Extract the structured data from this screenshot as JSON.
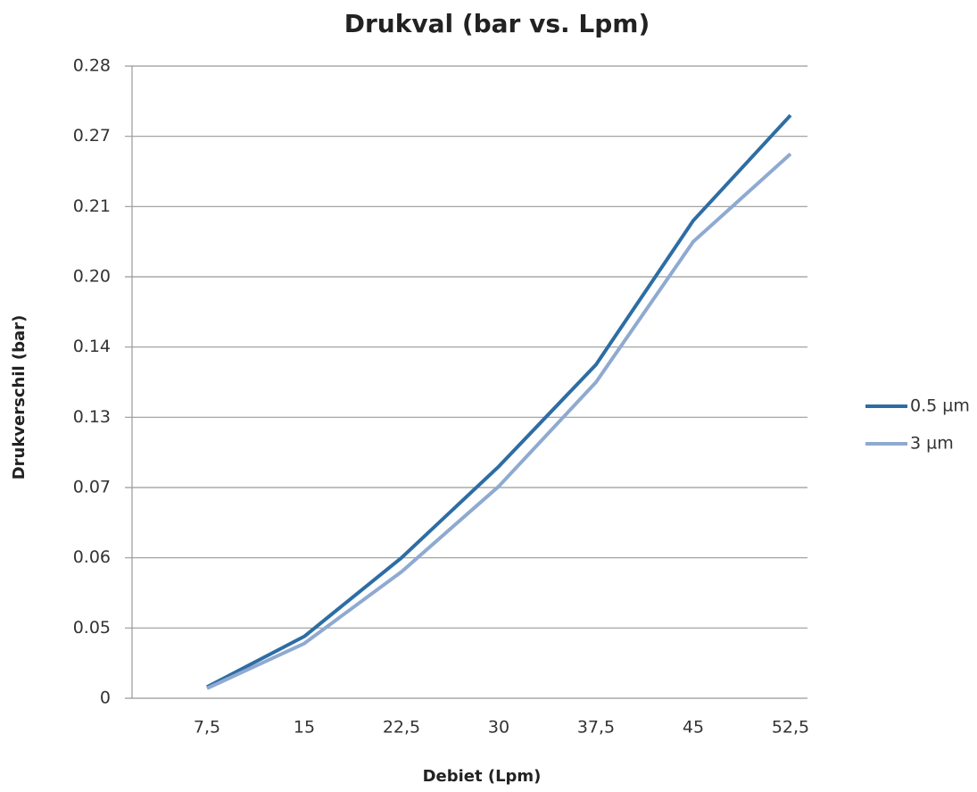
{
  "chart_data": {
    "type": "line",
    "title": "Drukval (bar vs. Lpm)",
    "x_label": "Debiet (Lpm)",
    "y_label": "Drukverschil (bar)",
    "categories": [
      "7,5",
      "15",
      "22,5",
      "30",
      "37,5",
      "45",
      "52,5"
    ],
    "series": [
      {
        "name": "0.5 µm",
        "color": "#2e6da4",
        "values": [
          0.008,
          0.044,
          0.06,
          0.088,
          0.1375,
          0.208,
          0.273
        ]
      },
      {
        "name": "3 µm",
        "color": "#8faad1",
        "values": [
          0.007,
          0.039,
          0.058,
          0.071,
          0.135,
          0.205,
          0.255
        ]
      }
    ],
    "ylim": [
      0,
      0.28
    ],
    "yticks": [
      0,
      0.05,
      0.06,
      0.07,
      0.13,
      0.14,
      {
        "value": 0.2,
        "label": "0.20"
      },
      0.21,
      0.27,
      0.28
    ],
    "grid": true,
    "legend": "right"
  }
}
